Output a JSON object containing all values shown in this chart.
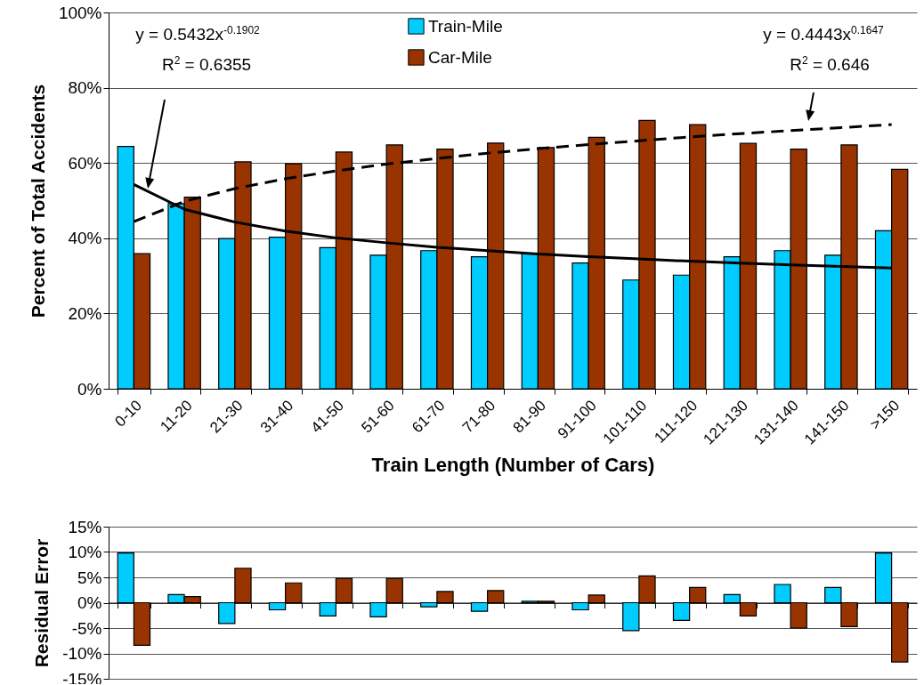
{
  "chart_data": [
    {
      "type": "bar",
      "ylabel": "Percent of Total Accidents",
      "xlabel": "Train Length (Number of Cars)",
      "categories": [
        "0-10",
        "11-20",
        "21-30",
        "31-40",
        "41-50",
        "51-60",
        "61-70",
        "71-80",
        "81-90",
        "91-100",
        "101-110",
        "111-120",
        "121-130",
        "131-140",
        "141-150",
        ">150"
      ],
      "series": [
        {
          "name": "Train-Mile",
          "color": "#00ccff",
          "values": [
            64.4,
            49.2,
            39.9,
            40.3,
            37.5,
            35.5,
            36.7,
            35.1,
            35.9,
            33.4,
            28.9,
            30.2,
            35.1,
            36.7,
            35.5,
            42.0
          ]
        },
        {
          "name": "Car-Mile",
          "color": "#993300",
          "values": [
            35.9,
            50.9,
            60.3,
            59.8,
            62.9,
            64.8,
            63.7,
            65.3,
            64.1,
            66.8,
            71.3,
            70.2,
            65.2,
            63.7,
            64.8,
            58.3
          ]
        },
        {
          "type": "line",
          "color": "#000000",
          "line_style": "dashed",
          "values": [
            44.4,
            49.8,
            53.2,
            55.8,
            57.9,
            59.7,
            61.2,
            62.6,
            63.8,
            64.9,
            65.9,
            66.9,
            67.8,
            68.6,
            69.4,
            70.2
          ]
        },
        {
          "type": "line",
          "color": "#000000",
          "line_style": "solid",
          "values": [
            54.3,
            47.7,
            44.3,
            41.9,
            40.1,
            38.8,
            37.6,
            36.7,
            35.8,
            35.1,
            34.5,
            33.9,
            33.4,
            32.9,
            32.5,
            32.1
          ]
        }
      ],
      "ylim": [
        0,
        100
      ],
      "yticks": [
        {
          "value": 0,
          "label": "0%"
        },
        {
          "value": 20,
          "label": "20%"
        },
        {
          "value": 40,
          "label": "40%"
        },
        {
          "value": 60,
          "label": "60%"
        },
        {
          "value": 80,
          "label": "80%"
        },
        {
          "value": 100,
          "label": "100%"
        }
      ],
      "grid": "y",
      "legend": "top",
      "annotations": [
        "y = 0.5432x$^{-0.1902}$",
        "R$^{2}$ = 0.6355",
        "y = 0.4443x$^{0.1647}$",
        "R$^{2}$ = 0.646"
      ]
    },
    {
      "type": "bar",
      "ylabel": "Residual Error",
      "categories": [
        null,
        null,
        null,
        null,
        null,
        null,
        null,
        null,
        null,
        null,
        null,
        null,
        null,
        null,
        null,
        null
      ],
      "series": [
        {
          "color": "#00ccff",
          "values": [
            9.8,
            1.6,
            -4.1,
            -1.4,
            -2.6,
            -2.8,
            -0.8,
            -1.7,
            0.3,
            -1.4,
            -5.5,
            -3.5,
            1.6,
            3.6,
            3.0,
            9.8
          ]
        },
        {
          "color": "#993300",
          "values": [
            -8.4,
            1.2,
            6.8,
            3.9,
            4.8,
            4.8,
            2.2,
            2.4,
            0.3,
            1.5,
            5.3,
            3.0,
            -2.6,
            -5.0,
            -4.7,
            -11.7
          ]
        }
      ],
      "ylim": [
        -15,
        15
      ],
      "yticks": [
        {
          "value": -15,
          "label": "-15%"
        },
        {
          "value": -10,
          "label": "-10%"
        },
        {
          "value": -5,
          "label": "-5%"
        },
        {
          "value": 0,
          "label": "0%"
        },
        {
          "value": 5,
          "label": "5%"
        },
        {
          "value": 10,
          "label": "10%"
        },
        {
          "value": 15,
          "label": "15%"
        }
      ],
      "grid": "y"
    }
  ]
}
